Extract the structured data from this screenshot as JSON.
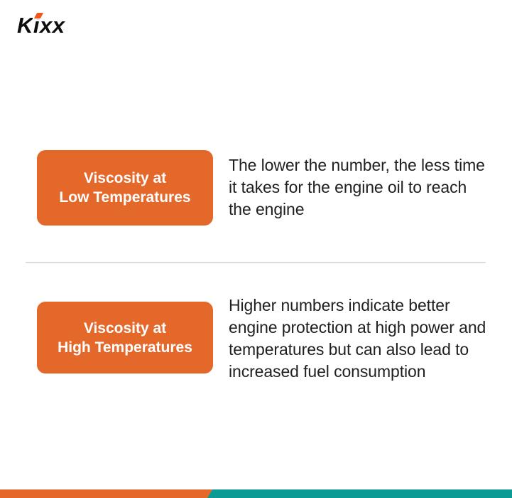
{
  "logo": {
    "text": "Kixx"
  },
  "sections": [
    {
      "label_line1": "Viscosity at",
      "label_line2": "Low Temperatures",
      "description": "The lower the number, the less time it takes for the engine oil to reach the engine"
    },
    {
      "label_line1": "Viscosity at",
      "label_line2": "High Temperatures",
      "description": "Higher numbers indicate better engine protection at high power and temperatures but can also lead to increased fuel consumption"
    }
  ],
  "colors": {
    "orange": "#e5682b",
    "teal": "#0c9b94",
    "logo_accent": "#f0581f",
    "text_dark": "#1f1f1f",
    "divider": "#dcdcdc"
  }
}
